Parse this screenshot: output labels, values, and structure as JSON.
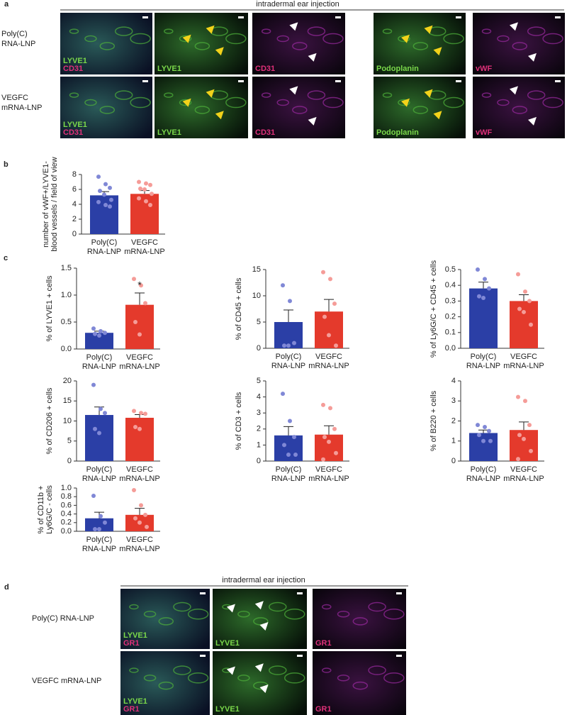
{
  "panel_a": {
    "label": "a",
    "header": "intradermal ear injection",
    "row_labels": [
      [
        "Poly(C)",
        "RNA-LNP"
      ],
      [
        "VEGFC",
        "mRNA-LNP"
      ]
    ],
    "image_labels": [
      [
        [
          "LYVE1",
          "CD31"
        ],
        [
          "LYVE1"
        ],
        [
          "CD31"
        ],
        [
          "Podoplanin"
        ],
        [
          "vWF"
        ]
      ],
      [
        [
          "LYVE1",
          "CD31"
        ],
        [
          "LYVE1"
        ],
        [
          "CD31"
        ],
        [
          "Podoplanin"
        ],
        [
          "vWF"
        ]
      ]
    ]
  },
  "panel_b_label": "b",
  "panel_c_label": "c",
  "chart_data": [
    {
      "type": "bar",
      "ylabel": [
        "number of vWF+/LYVE1-",
        "blood vessels / field of view"
      ],
      "categories": [
        [
          "Poly(C)",
          "RNA-LNP"
        ],
        [
          "VEGFC",
          "mRNA-LNP"
        ]
      ],
      "values": [
        5.2,
        5.4
      ],
      "errors": [
        0.5,
        0.45
      ],
      "colors": [
        "#2b3fa6",
        "#e43a2c"
      ],
      "point_colors": [
        "#8088d6",
        "#f59c98"
      ],
      "points": [
        [
          7.7,
          6.7,
          6.2,
          5.8,
          5.3,
          4.6,
          4.3,
          3.9,
          3.7
        ],
        [
          7.0,
          6.8,
          6.6,
          6.1,
          6.0,
          5.4,
          4.8,
          4.4,
          3.9
        ]
      ],
      "ylim": [
        0,
        8
      ],
      "yticks": [
        0,
        2,
        4,
        6,
        8
      ]
    },
    {
      "type": "bar",
      "ylabel": [
        "% of LYVE1 + cells"
      ],
      "annotation": "*",
      "categories": [
        [
          "Poly(C)",
          "RNA-LNP"
        ],
        [
          "VEGFC",
          "mRNA-LNP"
        ]
      ],
      "values": [
        0.3,
        0.82
      ],
      "errors": [
        0.03,
        0.22
      ],
      "colors": [
        "#2b3fa6",
        "#e43a2c"
      ],
      "point_colors": [
        "#8088d6",
        "#f59c98"
      ],
      "points": [
        [
          0.38,
          0.33,
          0.3,
          0.28,
          0.25
        ],
        [
          1.3,
          1.18,
          0.85,
          0.5,
          0.27
        ]
      ],
      "ylim": [
        0,
        1.5
      ],
      "yticks": [
        {
          "value": 0,
          "label": "0.0"
        },
        0.5,
        {
          "value": 1,
          "label": "1.0"
        },
        1.5
      ]
    },
    {
      "type": "bar",
      "ylabel": [
        "% of CD45 + cells"
      ],
      "categories": [
        [
          "Poly(C)",
          "RNA-LNP"
        ],
        [
          "VEGFC",
          "mRNA-LNP"
        ]
      ],
      "values": [
        5,
        7
      ],
      "errors": [
        2.3,
        2.3
      ],
      "colors": [
        "#2b3fa6",
        "#e43a2c"
      ],
      "point_colors": [
        "#8088d6",
        "#f59c98"
      ],
      "points": [
        [
          12,
          9,
          1,
          0.5,
          0.5
        ],
        [
          14.5,
          13.2,
          8.5,
          6,
          2.5,
          0.5
        ]
      ],
      "ylim": [
        0,
        15
      ],
      "yticks": [
        0,
        5,
        10,
        15
      ]
    },
    {
      "type": "bar",
      "ylabel": [
        "% of Ly6G/C + CD45 + cells"
      ],
      "categories": [
        [
          "Poly(C)",
          "RNA-LNP"
        ],
        [
          "VEGFC",
          "mRNA-LNP"
        ]
      ],
      "values": [
        0.38,
        0.3
      ],
      "errors": [
        0.04,
        0.04
      ],
      "colors": [
        "#2b3fa6",
        "#e43a2c"
      ],
      "point_colors": [
        "#8088d6",
        "#f59c98"
      ],
      "points": [
        [
          0.5,
          0.44,
          0.38,
          0.33,
          0.32
        ],
        [
          0.47,
          0.36,
          0.3,
          0.25,
          0.23,
          0.15
        ]
      ],
      "ylim": [
        0,
        0.5
      ],
      "yticks": [
        {
          "value": 0,
          "label": "0.0"
        },
        0.1,
        0.2,
        0.3,
        0.4,
        0.5
      ]
    },
    {
      "type": "bar",
      "ylabel": [
        "% of CD206 + cells"
      ],
      "categories": [
        [
          "Poly(C)",
          "RNA-LNP"
        ],
        [
          "VEGFC",
          "mRNA-LNP"
        ]
      ],
      "values": [
        11.5,
        10.8
      ],
      "errors": [
        2,
        0.8
      ],
      "colors": [
        "#2b3fa6",
        "#e43a2c"
      ],
      "point_colors": [
        "#8088d6",
        "#f59c98"
      ],
      "points": [
        [
          19,
          13,
          12,
          8,
          7
        ],
        [
          12.5,
          12,
          11.8,
          8.5,
          8
        ]
      ],
      "ylim": [
        0,
        20
      ],
      "yticks": [
        0,
        5,
        10,
        15,
        20
      ]
    },
    {
      "type": "bar",
      "ylabel": [
        "% of CD3 + cells"
      ],
      "categories": [
        [
          "Poly(C)",
          "RNA-LNP"
        ],
        [
          "VEGFC",
          "mRNA-LNP"
        ]
      ],
      "values": [
        1.6,
        1.65
      ],
      "errors": [
        0.55,
        0.55
      ],
      "colors": [
        "#2b3fa6",
        "#e43a2c"
      ],
      "point_colors": [
        "#8088d6",
        "#f59c98"
      ],
      "points": [
        [
          4.2,
          2.5,
          1.5,
          1,
          0.4,
          0.4
        ],
        [
          3.5,
          3.3,
          2,
          1.5,
          1.2,
          0.5,
          0.1
        ]
      ],
      "ylim": [
        0,
        5
      ],
      "yticks": [
        0,
        1,
        2,
        3,
        4,
        5
      ]
    },
    {
      "type": "bar",
      "ylabel": [
        "% of B220 + cells"
      ],
      "categories": [
        [
          "Poly(C)",
          "RNA-LNP"
        ],
        [
          "VEGFC",
          "mRNA-LNP"
        ]
      ],
      "values": [
        1.4,
        1.55
      ],
      "errors": [
        0.15,
        0.4
      ],
      "colors": [
        "#2b3fa6",
        "#e43a2c"
      ],
      "point_colors": [
        "#8088d6",
        "#f59c98"
      ],
      "points": [
        [
          1.8,
          1.7,
          1.5,
          1.3,
          1.0,
          1.0
        ],
        [
          3.2,
          3.0,
          1.8,
          1.3,
          1.1,
          0.5,
          0.1
        ]
      ],
      "ylim": [
        0,
        4
      ],
      "yticks": [
        0,
        1,
        2,
        3,
        4
      ]
    },
    {
      "type": "bar",
      "ylabel": [
        "% of CD11b +",
        "Ly6G/C - cells"
      ],
      "categories": [
        [
          "Poly(C)",
          "RNA-LNP"
        ],
        [
          "VEGFC",
          "mRNA-LNP"
        ]
      ],
      "values": [
        0.3,
        0.38
      ],
      "errors": [
        0.14,
        0.15
      ],
      "colors": [
        "#2b3fa6",
        "#e43a2c"
      ],
      "point_colors": [
        "#8088d6",
        "#f59c98"
      ],
      "points": [
        [
          0.82,
          0.35,
          0.2,
          0.05,
          0.05
        ],
        [
          0.95,
          0.6,
          0.38,
          0.3,
          0.2,
          0.1
        ]
      ],
      "ylim": [
        0,
        1
      ],
      "yticks": [
        {
          "value": 0,
          "label": "0.0"
        },
        0.2,
        0.4,
        0.6,
        0.8,
        {
          "value": 1,
          "label": "1.0"
        }
      ]
    }
  ],
  "panel_d": {
    "label": "d",
    "header": "intradermal ear injection",
    "row_labels": [
      "Poly(C) RNA-LNP",
      "VEGFC mRNA-LNP"
    ],
    "image_labels": [
      [
        [
          "LYVE1",
          "GR1"
        ],
        [
          "LYVE1"
        ],
        [
          "GR1"
        ]
      ],
      [
        [
          "LYVE1",
          "GR1"
        ],
        [
          "LYVE1"
        ],
        [
          "GR1"
        ]
      ]
    ]
  }
}
